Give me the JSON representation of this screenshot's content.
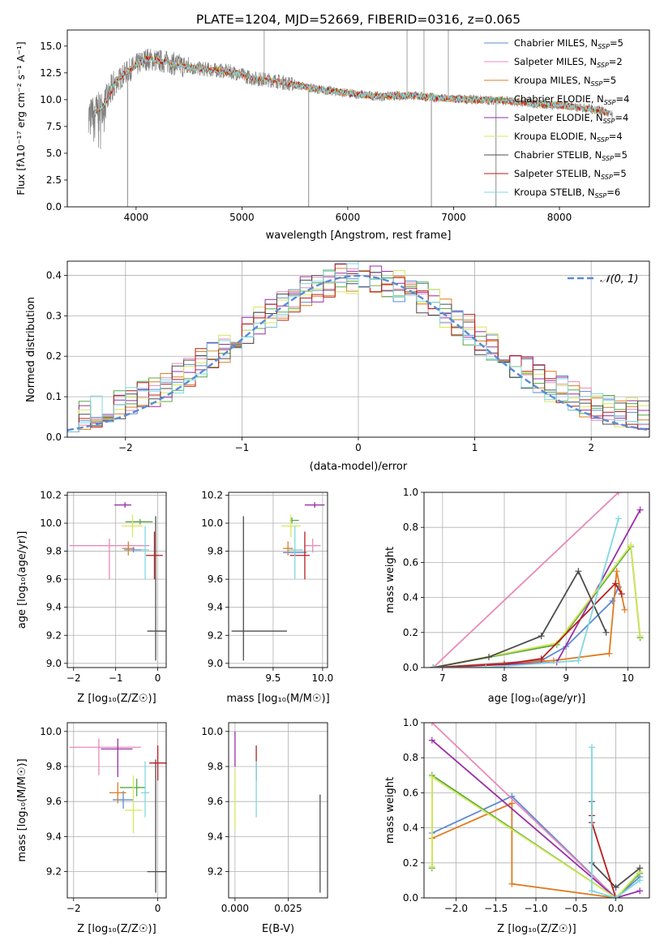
{
  "colors": {
    "chabrier_miles": "#5b8bd6",
    "salpeter_miles": "#e88ab8",
    "kroupa_miles": "#e07b20",
    "chabrier_elodie": "#57a844",
    "salpeter_elodie": "#9a2fa6",
    "kroupa_elodie": "#d6e85a",
    "chabrier_stelib": "#4d4d4d",
    "salpeter_stelib": "#b81c1c",
    "kroupa_stelib": "#7fd8e0",
    "normal": "#5b8bd6"
  },
  "chart_data": [
    {
      "id": "spectrum",
      "type": "line",
      "title": "PLATE=1204, MJD=52669, FIBERID=0316, z=0.065",
      "xlabel": "wavelength [Angstrom, rest frame]",
      "ylabel": "Flux [fλ10⁻¹⁷ erg cm⁻² s⁻¹ A⁻¹]",
      "xlim": [
        3350,
        8850
      ],
      "ylim": [
        0,
        16.5
      ],
      "xticks": [
        4000,
        5000,
        6000,
        7000,
        8000
      ],
      "yticks": [
        0.0,
        2.5,
        5.0,
        7.5,
        10.0,
        12.5,
        15.0
      ],
      "legend_position": "top-right",
      "legend": [
        {
          "name": "Chabrier MILES, N_SSP=5",
          "main": "Chabrier MILES, N",
          "sub": "SSP",
          "tail": "=5",
          "color_key": "chabrier_miles"
        },
        {
          "name": "Salpeter MILES, N_SSP=2",
          "main": "Salpeter MILES, N",
          "sub": "SSP",
          "tail": "=2",
          "color_key": "salpeter_miles"
        },
        {
          "name": "Kroupa MILES, N_SSP=5",
          "main": "Kroupa MILES, N",
          "sub": "SSP",
          "tail": "=5",
          "color_key": "kroupa_miles"
        },
        {
          "name": "Chabrier ELODIE, N_SSP=4",
          "main": "Chabrier ELODIE, N",
          "sub": "SSP",
          "tail": "=4",
          "color_key": "chabrier_elodie"
        },
        {
          "name": "Salpeter ELODIE, N_SSP=4",
          "main": "Salpeter ELODIE, N",
          "sub": "SSP",
          "tail": "=4",
          "color_key": "salpeter_elodie"
        },
        {
          "name": "Kroupa ELODIE, N_SSP=4",
          "main": "Kroupa ELODIE, N",
          "sub": "SSP",
          "tail": "=4",
          "color_key": "kroupa_elodie"
        },
        {
          "name": "Chabrier STELIB, N_SSP=5",
          "main": "Chabrier STELIB, N",
          "sub": "SSP",
          "tail": "=5",
          "color_key": "chabrier_stelib"
        },
        {
          "name": "Salpeter STELIB, N_SSP=5",
          "main": "Salpeter STELIB, N",
          "sub": "SSP",
          "tail": "=5",
          "color_key": "salpeter_stelib"
        },
        {
          "name": "Kroupa STELIB, N_SSP=6",
          "main": "Kroupa STELIB, N",
          "sub": "SSP",
          "tail": "=6",
          "color_key": "kroupa_stelib"
        }
      ],
      "continuum": {
        "wavelength": [
          3550,
          3700,
          3800,
          3900,
          4000,
          4100,
          4300,
          4500,
          4700,
          4900,
          5100,
          5300,
          5500,
          5700,
          6000,
          6300,
          6600,
          6900,
          7200,
          7500,
          7800,
          8100,
          8400,
          8500
        ],
        "flux": [
          8.5,
          9.5,
          11.5,
          12.5,
          13.2,
          13.8,
          13.5,
          13.0,
          12.8,
          12.6,
          12.0,
          11.8,
          11.4,
          11.0,
          10.6,
          10.3,
          10.4,
          10.1,
          10.0,
          9.9,
          9.6,
          9.4,
          9.0,
          8.5
        ]
      },
      "absorption_lines": [
        {
          "wavelength": 3920,
          "flux": 0.0
        },
        {
          "wavelength": 5630,
          "flux": 0.0
        },
        {
          "wavelength": 6790,
          "flux": 0.0
        },
        {
          "wavelength": 7400,
          "flux": 0.0
        }
      ],
      "emission_spikes": [
        {
          "wavelength": 5210,
          "flux": 16.5
        },
        {
          "wavelength": 6560,
          "flux": 16.5
        },
        {
          "wavelength": 6720,
          "flux": 16.5
        },
        {
          "wavelength": 6950,
          "flux": 16.5
        }
      ]
    },
    {
      "id": "residuals",
      "type": "line",
      "xlabel": "(data-model)/error",
      "ylabel": "Normed distribution",
      "xlim": [
        -2.5,
        2.5
      ],
      "ylim": [
        0,
        0.435
      ],
      "xticks": [
        -2,
        -1,
        0,
        1,
        2
      ],
      "yticks": [
        0.0,
        0.1,
        0.2,
        0.3,
        0.4
      ],
      "grid": true,
      "legend_position": "top-right",
      "legend": [
        {
          "name": "𝒩(0, 1)",
          "color_key": "normal"
        }
      ],
      "bin_width": 0.1
    },
    {
      "id": "age_vs_Z",
      "type": "scatter",
      "xlabel": "Z [log₁₀(Z/Z☉)]",
      "ylabel": "age [log₁₀(age/yr)]",
      "xlim": [
        -2.15,
        0.2
      ],
      "ylim": [
        8.97,
        10.22
      ],
      "xticks": [
        -2,
        -1,
        0
      ],
      "yticks": [
        9.0,
        9.2,
        9.4,
        9.6,
        9.8,
        10.0,
        10.2
      ],
      "grid": true,
      "points": [
        {
          "key": "chabrier_miles",
          "x": -0.58,
          "xerr": [
            0.22,
            0.3
          ],
          "y": 9.81,
          "yerr": [
            0.02,
            0.02
          ]
        },
        {
          "key": "salpeter_miles",
          "x": -1.15,
          "xerr": [
            0.95,
            0.95
          ],
          "y": 9.84,
          "yerr": [
            0.24,
            0.05
          ]
        },
        {
          "key": "kroupa_miles",
          "x": -0.7,
          "xerr": [
            0.15,
            0.15
          ],
          "y": 9.82,
          "yerr": [
            0.05,
            0.05
          ]
        },
        {
          "key": "chabrier_elodie",
          "x": -0.42,
          "xerr": [
            0.35,
            0.3
          ],
          "y": 10.01,
          "yerr": [
            0.02,
            0.02
          ]
        },
        {
          "key": "salpeter_elodie",
          "x": -0.78,
          "xerr": [
            0.25,
            0.15
          ],
          "y": 10.13,
          "yerr": [
            0.02,
            0.02
          ]
        },
        {
          "key": "kroupa_elodie",
          "x": -0.6,
          "xerr": [
            0.25,
            0.25
          ],
          "y": 9.98,
          "yerr": [
            0.08,
            0.08
          ]
        },
        {
          "key": "chabrier_stelib",
          "x": -0.05,
          "xerr": [
            0.2,
            0.3
          ],
          "y": 9.23,
          "yerr": [
            0.21,
            0.82
          ]
        },
        {
          "key": "salpeter_stelib",
          "x": -0.08,
          "xerr": [
            0.2,
            0.2
          ],
          "y": 9.77,
          "yerr": [
            0.17,
            0.17
          ]
        },
        {
          "key": "kroupa_stelib",
          "x": -0.3,
          "xerr": [
            0.1,
            0.1
          ],
          "y": 9.81,
          "yerr": [
            0.21,
            0.17
          ]
        }
      ]
    },
    {
      "id": "age_vs_mass",
      "type": "scatter",
      "xlabel": "mass [log₁₀(M/M☉)]",
      "xlim": [
        9.05,
        10.05
      ],
      "ylim": [
        8.97,
        10.22
      ],
      "xticks": [
        9.5,
        10.0
      ],
      "yticks": [
        9.0,
        9.2,
        9.4,
        9.6,
        9.8,
        10.0,
        10.2
      ],
      "grid": true,
      "points": [
        {
          "key": "chabrier_miles",
          "x": 9.72,
          "xerr": [
            0.12,
            0.12
          ],
          "y": 9.79,
          "yerr": [
            0.02,
            0.02
          ]
        },
        {
          "key": "salpeter_miles",
          "x": 9.9,
          "xerr": [
            0.08,
            0.08
          ],
          "y": 9.84,
          "yerr": [
            0.05,
            0.05
          ]
        },
        {
          "key": "kroupa_miles",
          "x": 9.65,
          "xerr": [
            0.05,
            0.05
          ],
          "y": 9.82,
          "yerr": [
            0.05,
            0.05
          ]
        },
        {
          "key": "chabrier_elodie",
          "x": 9.69,
          "xerr": [
            0.02,
            0.07
          ],
          "y": 10.02,
          "yerr": [
            0.02,
            0.02
          ]
        },
        {
          "key": "salpeter_elodie",
          "x": 9.92,
          "xerr": [
            0.1,
            0.1
          ],
          "y": 10.13,
          "yerr": [
            0.02,
            0.02
          ]
        },
        {
          "key": "kroupa_elodie",
          "x": 9.68,
          "xerr": [
            0.1,
            0.1
          ],
          "y": 9.98,
          "yerr": [
            0.08,
            0.08
          ]
        },
        {
          "key": "chabrier_stelib",
          "x": 9.2,
          "xerr": [
            0.12,
            0.44
          ],
          "y": 9.23,
          "yerr": [
            0.21,
            0.82
          ]
        },
        {
          "key": "salpeter_stelib",
          "x": 9.82,
          "xerr": [
            0.15,
            0.05
          ],
          "y": 9.77,
          "yerr": [
            0.17,
            0.17
          ]
        },
        {
          "key": "kroupa_stelib",
          "x": 9.72,
          "xerr": [
            0.08,
            0.08
          ],
          "y": 9.81,
          "yerr": [
            0.21,
            0.17
          ]
        }
      ]
    },
    {
      "id": "weight_vs_age",
      "type": "line",
      "xlabel": "age [log₁₀(age/yr)]",
      "ylabel": "mass weight",
      "xlim": [
        6.7,
        10.35
      ],
      "ylim": [
        0,
        1.0
      ],
      "xticks": [
        7,
        8,
        9,
        10
      ],
      "yticks": [
        0.0,
        0.2,
        0.4,
        0.6,
        0.8,
        1.0
      ],
      "grid": true,
      "series": [
        {
          "key": "chabrier_miles",
          "x": [
            6.85,
            8.6,
            9.0,
            9.75,
            9.85
          ],
          "y": [
            0.0,
            0.04,
            0.12,
            0.38,
            0.46
          ]
        },
        {
          "key": "salpeter_miles",
          "x": [
            6.85,
            9.85
          ],
          "y": [
            0.0,
            1.0
          ]
        },
        {
          "key": "kroupa_miles",
          "x": [
            6.85,
            8.8,
            9.7,
            9.82,
            9.95
          ],
          "y": [
            0.0,
            0.04,
            0.08,
            0.55,
            0.33
          ]
        },
        {
          "key": "chabrier_elodie",
          "x": [
            6.85,
            8.85,
            10.05,
            10.2
          ],
          "y": [
            0.0,
            0.13,
            0.69,
            0.17
          ]
        },
        {
          "key": "salpeter_elodie",
          "x": [
            6.85,
            8.85,
            10.2
          ],
          "y": [
            0.0,
            0.03,
            0.9
          ]
        },
        {
          "key": "kroupa_elodie",
          "x": [
            6.85,
            8.85,
            10.05,
            10.2
          ],
          "y": [
            0.0,
            0.14,
            0.7,
            0.18
          ]
        },
        {
          "key": "chabrier_stelib",
          "x": [
            6.85,
            7.75,
            8.6,
            9.2,
            9.65
          ],
          "y": [
            0.0,
            0.06,
            0.18,
            0.55,
            0.2
          ]
        },
        {
          "key": "salpeter_stelib",
          "x": [
            6.85,
            8.0,
            8.6,
            9.8,
            9.9
          ],
          "y": [
            0.0,
            0.02,
            0.05,
            0.48,
            0.42
          ]
        },
        {
          "key": "kroupa_stelib",
          "x": [
            6.85,
            7.7,
            9.2,
            9.85
          ],
          "y": [
            0.0,
            0.0,
            0.04,
            0.85
          ]
        }
      ]
    },
    {
      "id": "mass_vs_Z",
      "type": "scatter",
      "xlabel": "Z [log₁₀(Z/Z☉)]",
      "ylabel": "mass [log₁₀(M/M☉)]",
      "xlim": [
        -2.15,
        0.2
      ],
      "ylim": [
        9.05,
        10.05
      ],
      "xticks": [
        -2,
        0
      ],
      "yticks": [
        9.2,
        9.4,
        9.6,
        9.8,
        10.0
      ],
      "grid": true,
      "points": [
        {
          "key": "chabrier_miles",
          "x": -0.82,
          "xerr": [
            0.25,
            0.25
          ],
          "y": 9.61,
          "yerr": [
            0.05,
            0.05
          ]
        },
        {
          "key": "salpeter_miles",
          "x": -1.4,
          "xerr": [
            0.7,
            1.0
          ],
          "y": 9.91,
          "yerr": [
            0.16,
            0.05
          ]
        },
        {
          "key": "kroupa_miles",
          "x": -0.95,
          "xerr": [
            0.2,
            0.2
          ],
          "y": 9.65,
          "yerr": [
            0.06,
            0.06
          ]
        },
        {
          "key": "chabrier_elodie",
          "x": -0.5,
          "xerr": [
            0.4,
            0.2
          ],
          "y": 9.68,
          "yerr": [
            0.05,
            0.05
          ]
        },
        {
          "key": "salpeter_elodie",
          "x": -0.95,
          "xerr": [
            0.4,
            0.35
          ],
          "y": 9.9,
          "yerr": [
            0.16,
            0.06
          ]
        },
        {
          "key": "kroupa_elodie",
          "x": -0.58,
          "xerr": [
            0.2,
            0.2
          ],
          "y": 9.55,
          "yerr": [
            0.13,
            0.2
          ]
        },
        {
          "key": "chabrier_stelib",
          "x": -0.05,
          "xerr": [
            0.2,
            0.3
          ],
          "y": 9.2,
          "yerr": [
            0.12,
            0.64
          ]
        },
        {
          "key": "salpeter_stelib",
          "x": 0.0,
          "xerr": [
            0.2,
            0.3
          ],
          "y": 9.82,
          "yerr": [
            0.1,
            0.1
          ]
        },
        {
          "key": "kroupa_stelib",
          "x": -0.3,
          "xerr": [
            0.1,
            0.1
          ],
          "y": 9.65,
          "yerr": [
            0.14,
            0.18
          ]
        }
      ]
    },
    {
      "id": "mass_vs_ebv",
      "type": "scatter",
      "xlabel": "E(B-V)",
      "xlim": [
        -0.003,
        0.0435
      ],
      "ylim": [
        9.05,
        10.05
      ],
      "xticks": [
        0.0,
        0.025
      ],
      "xtick_labels": [
        "0.000",
        "0.025"
      ],
      "yticks": [
        9.2,
        9.4,
        9.6,
        9.8,
        10.0
      ],
      "grid": true,
      "points": [
        {
          "key": "salpeter_elodie",
          "x": 0.0,
          "y": 9.9,
          "yerr": [
            0.1,
            0.1
          ]
        },
        {
          "key": "kroupa_elodie",
          "x": 0.0,
          "y": 9.58,
          "yerr": [
            0.14,
            0.2
          ]
        },
        {
          "key": "salpeter_stelib",
          "x": 0.01,
          "y": 9.82,
          "yerr": [
            0.1,
            0.1
          ]
        },
        {
          "key": "kroupa_stelib",
          "x": 0.01,
          "y": 9.65,
          "yerr": [
            0.14,
            0.18
          ]
        },
        {
          "key": "chabrier_stelib",
          "x": 0.04,
          "y": 9.36,
          "yerr": [
            0.28,
            0.28
          ]
        }
      ]
    },
    {
      "id": "weight_vs_Z",
      "type": "line",
      "xlabel": "Z [log₁₀(Z/Z☉)]",
      "ylabel": "mass weight",
      "xlim": [
        -2.4,
        0.42
      ],
      "ylim": [
        0,
        1.0
      ],
      "xticks": [
        -2.0,
        -1.5,
        -1.0,
        -0.5,
        0.0
      ],
      "yticks": [
        0.0,
        0.2,
        0.4,
        0.6,
        0.8,
        1.0
      ],
      "grid": true,
      "series": [
        {
          "key": "chabrier_miles",
          "x": [
            -2.3,
            -1.3,
            0.0,
            0.3
          ],
          "y": [
            0.37,
            0.58,
            0.0,
            0.12
          ]
        },
        {
          "key": "salpeter_miles",
          "x": [
            -2.3,
            0.0
          ],
          "y": [
            1.0,
            0.0
          ]
        },
        {
          "key": "kroupa_miles",
          "x": [
            -2.3,
            -1.3,
            -1.3,
            0.0
          ],
          "y": [
            0.34,
            0.54,
            0.08,
            0.0
          ]
        },
        {
          "key": "chabrier_elodie",
          "x": [
            -2.3,
            -2.3,
            0.0,
            0.3
          ],
          "y": [
            0.17,
            0.7,
            0.0,
            0.14
          ]
        },
        {
          "key": "salpeter_elodie",
          "x": [
            -2.3,
            0.0,
            0.3
          ],
          "y": [
            0.9,
            0.0,
            0.04
          ]
        },
        {
          "key": "kroupa_elodie",
          "x": [
            -2.3,
            -2.3,
            0.0,
            0.3
          ],
          "y": [
            0.18,
            0.69,
            0.0,
            0.15
          ]
        },
        {
          "key": "chabrier_stelib",
          "x": [
            -0.3,
            -0.3,
            0.0,
            0.3
          ],
          "y": [
            0.55,
            0.2,
            0.06,
            0.17
          ]
        },
        {
          "key": "salpeter_stelib",
          "x": [
            -0.3,
            -0.3,
            0.0
          ],
          "y": [
            0.47,
            0.43,
            0.0
          ]
        },
        {
          "key": "kroupa_stelib",
          "x": [
            -0.3,
            -0.3,
            0.0,
            0.3
          ],
          "y": [
            0.86,
            0.04,
            0.0,
            0.1
          ]
        }
      ]
    }
  ]
}
